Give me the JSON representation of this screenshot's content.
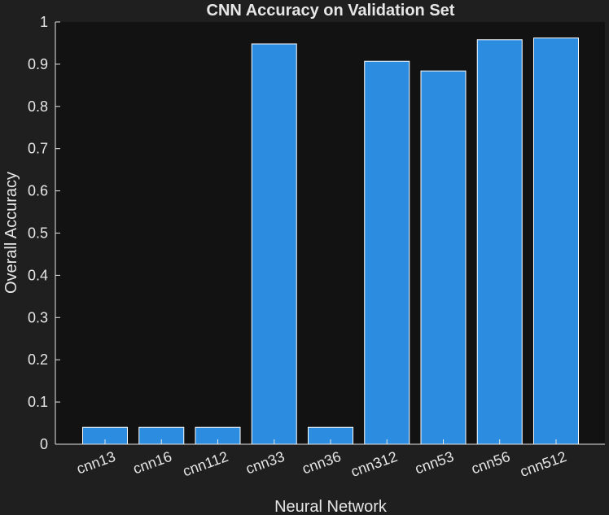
{
  "chart_data": {
    "type": "bar",
    "title": "CNN Accuracy on Validation Set",
    "xlabel": "Neural Network",
    "ylabel": "Overall Accuracy",
    "categories": [
      "cnn13",
      "cnn16",
      "cnn112",
      "cnn33",
      "cnn36",
      "cnn312",
      "cnn53",
      "cnn56",
      "cnn512"
    ],
    "values": [
      0.04,
      0.04,
      0.04,
      0.948,
      0.04,
      0.907,
      0.884,
      0.958,
      0.962
    ],
    "ylim": [
      0,
      1
    ],
    "yticks": [
      0,
      0.1,
      0.2,
      0.3,
      0.4,
      0.5,
      0.6,
      0.7,
      0.8,
      0.9,
      1
    ],
    "ytick_labels": [
      "0",
      "0.1",
      "0.2",
      "0.3",
      "0.4",
      "0.5",
      "0.6",
      "0.7",
      "0.8",
      "0.9",
      "1"
    ],
    "grid": false,
    "colors": {
      "figure_background": "#1f1f1f",
      "axes_background": "#121212",
      "bar_fill": "#2b8ce0",
      "bar_edge": "#ffffff",
      "text": "#e6e6e6"
    }
  }
}
